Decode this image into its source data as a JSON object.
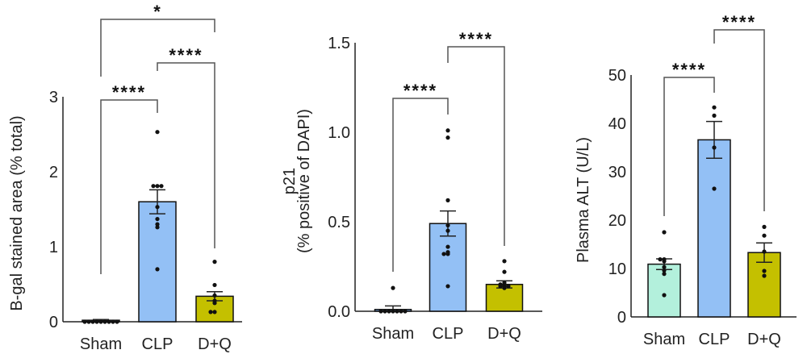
{
  "chart_data": [
    {
      "type": "bar",
      "ylabel": [
        "B-gal stained area (% total)"
      ],
      "ylim": [
        0,
        3
      ],
      "yticks": [
        "0",
        "1",
        "2",
        "3"
      ],
      "categories": [
        "Sham",
        "CLP",
        "D+Q"
      ],
      "colors": [
        "#7fb0ee",
        "#93c0f5",
        "#c4c000"
      ],
      "means": [
        0.02,
        1.6,
        0.34
      ],
      "sem": [
        0.01,
        0.16,
        0.06
      ],
      "points": [
        [
          0,
          0,
          0,
          0,
          0,
          0,
          0,
          0,
          0
        ],
        [
          2.53,
          1.81,
          1.81,
          1.81,
          1.53,
          1.37,
          1.3,
          1.26,
          0.7
        ],
        [
          0.8,
          0.49,
          0.35,
          0.28,
          0.25,
          0.13,
          0.13
        ]
      ],
      "comparisons": [
        {
          "groups": [
            "Sham",
            "CLP"
          ],
          "label": "****"
        },
        {
          "groups": [
            "CLP",
            "D+Q"
          ],
          "label": "****"
        },
        {
          "groups": [
            "Sham",
            "D+Q"
          ],
          "label": "*"
        }
      ]
    },
    {
      "type": "bar",
      "ylabel": [
        "p21",
        "(% positive of DAPI)"
      ],
      "ylim": [
        0,
        1.5
      ],
      "yticks": [
        "0.0",
        "0.5",
        "1.0",
        "1.5"
      ],
      "categories": [
        "Sham",
        "CLP",
        "D+Q"
      ],
      "colors": [
        "#7fb0ee",
        "#93c0f5",
        "#c4c000"
      ],
      "means": [
        0.01,
        0.49,
        0.15
      ],
      "sem": [
        0.02,
        0.07,
        0.02
      ],
      "points": [
        [
          0.13,
          0,
          0,
          0,
          0,
          0,
          0,
          0
        ],
        [
          1.01,
          0.97,
          0.62,
          0.48,
          0.45,
          0.36,
          0.33,
          0.32,
          0.32,
          0.14
        ],
        [
          0.28,
          0.22,
          0.16,
          0.15,
          0.15,
          0.14,
          0.14,
          0.14,
          0.13
        ]
      ],
      "comparisons": [
        {
          "groups": [
            "Sham",
            "CLP"
          ],
          "label": "****"
        },
        {
          "groups": [
            "CLP",
            "D+Q"
          ],
          "label": "****"
        }
      ]
    },
    {
      "type": "bar",
      "ylabel": [
        "Plasma ALT (U/L)"
      ],
      "ylim": [
        0,
        50
      ],
      "yticks": [
        "0",
        "10",
        "20",
        "30",
        "40",
        "50"
      ],
      "categories": [
        "Sham",
        "CLP",
        "D+Q"
      ],
      "colors": [
        "#b3f0dc",
        "#93c0f5",
        "#c4c000"
      ],
      "means": [
        10.9,
        36.6,
        13.3
      ],
      "sem": [
        1.1,
        3.8,
        2.0
      ],
      "points": [
        [
          17.5,
          11.9,
          11.9,
          11.5,
          10.3,
          9.6,
          8.9,
          4.5
        ],
        [
          43.3,
          41.6,
          35,
          26.5
        ],
        [
          18.6,
          16.8,
          13.5,
          9.5,
          8.5
        ]
      ],
      "comparisons": [
        {
          "groups": [
            "Sham",
            "CLP"
          ],
          "label": "****"
        },
        {
          "groups": [
            "CLP",
            "D+Q"
          ],
          "label": "****"
        }
      ]
    }
  ]
}
